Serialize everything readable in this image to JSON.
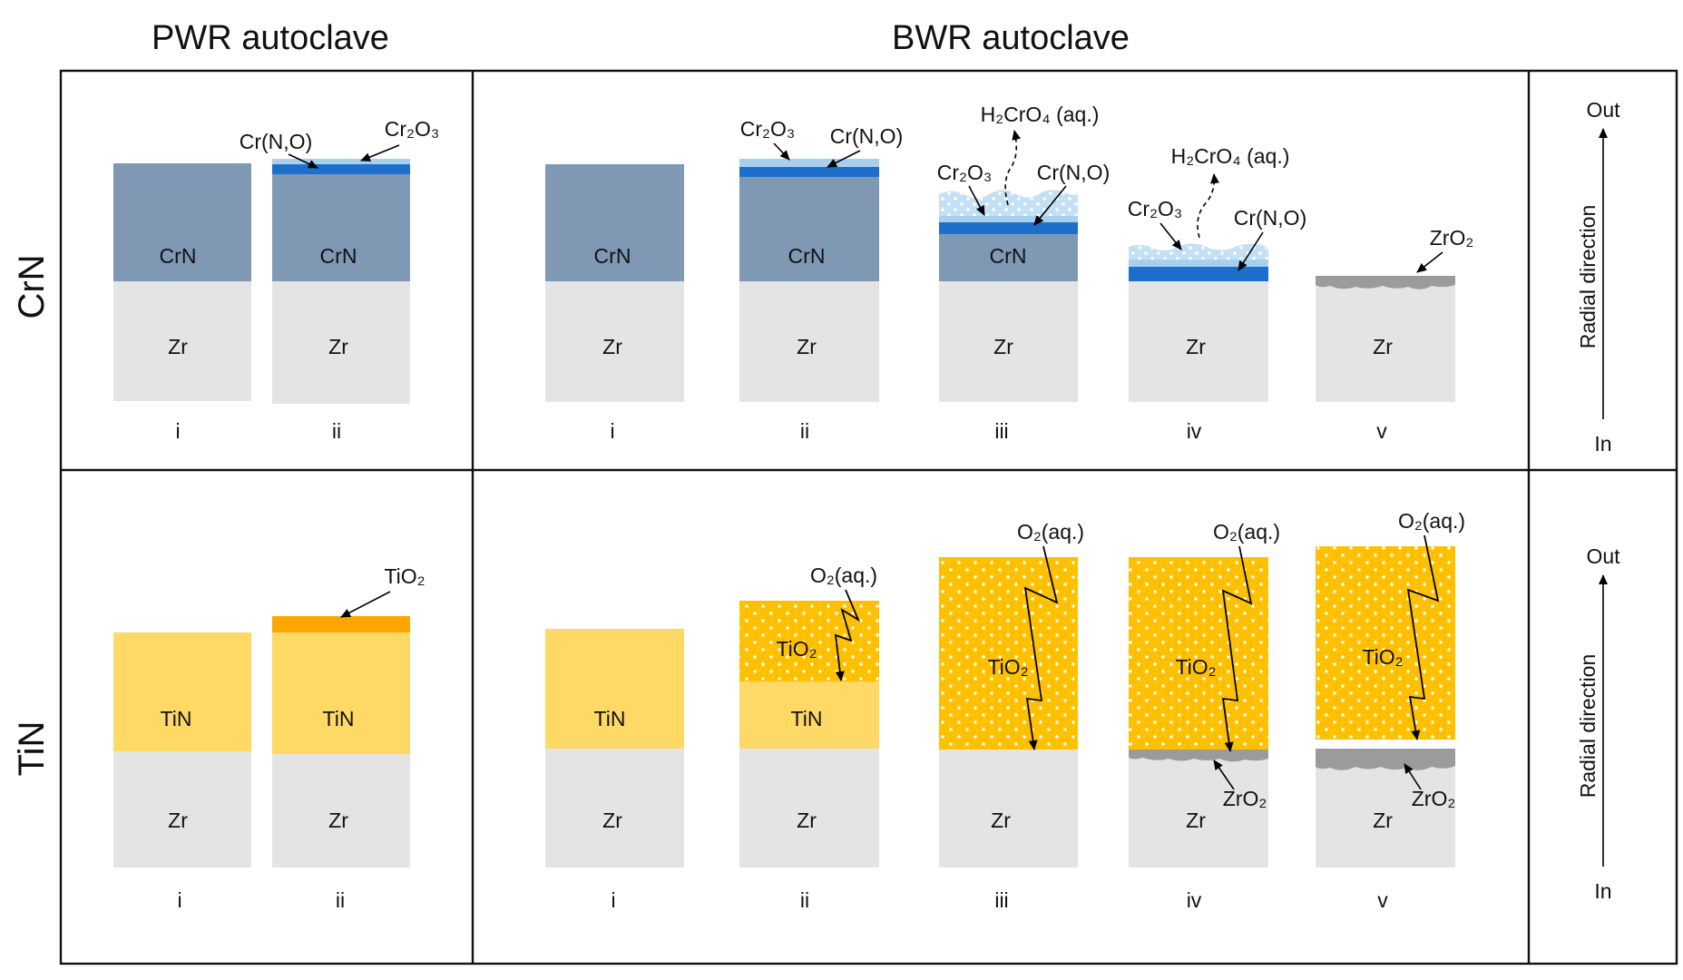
{
  "headers": {
    "pwr": "PWR autoclave",
    "bwr": "BWR autoclave"
  },
  "rows": {
    "crn": "CrN",
    "tin": "TiN"
  },
  "materials": {
    "zr": "Zr",
    "crn": "CrN",
    "tin": "TiN",
    "tio2": "TiO₂"
  },
  "labels": {
    "crno": "Cr(N,O)",
    "cr2o3": "Cr₂O₃",
    "h2cro4": "H₂CrO₄ (aq.)",
    "zro2": "ZrO₂",
    "tio2": "TiO₂",
    "o2aq": "O₂(aq.)"
  },
  "stages": {
    "pwr": [
      "i",
      "ii"
    ],
    "bwr": [
      "i",
      "ii",
      "iii",
      "iv",
      "v"
    ]
  },
  "radial": {
    "out": "Out",
    "in": "In",
    "direction": "Radial direction"
  },
  "colors": {
    "zr": "#e4e4e4",
    "crn": "#7f98b4",
    "crno": "#1e6fcc",
    "cr2o3": "#a8d0ee",
    "cr2o3_porous": "#c4e0f4",
    "tin": "#ffd966",
    "tio2_dense": "#ffa500",
    "tio2_porous": "#ffc000",
    "zro2": "#9b9b9b"
  }
}
